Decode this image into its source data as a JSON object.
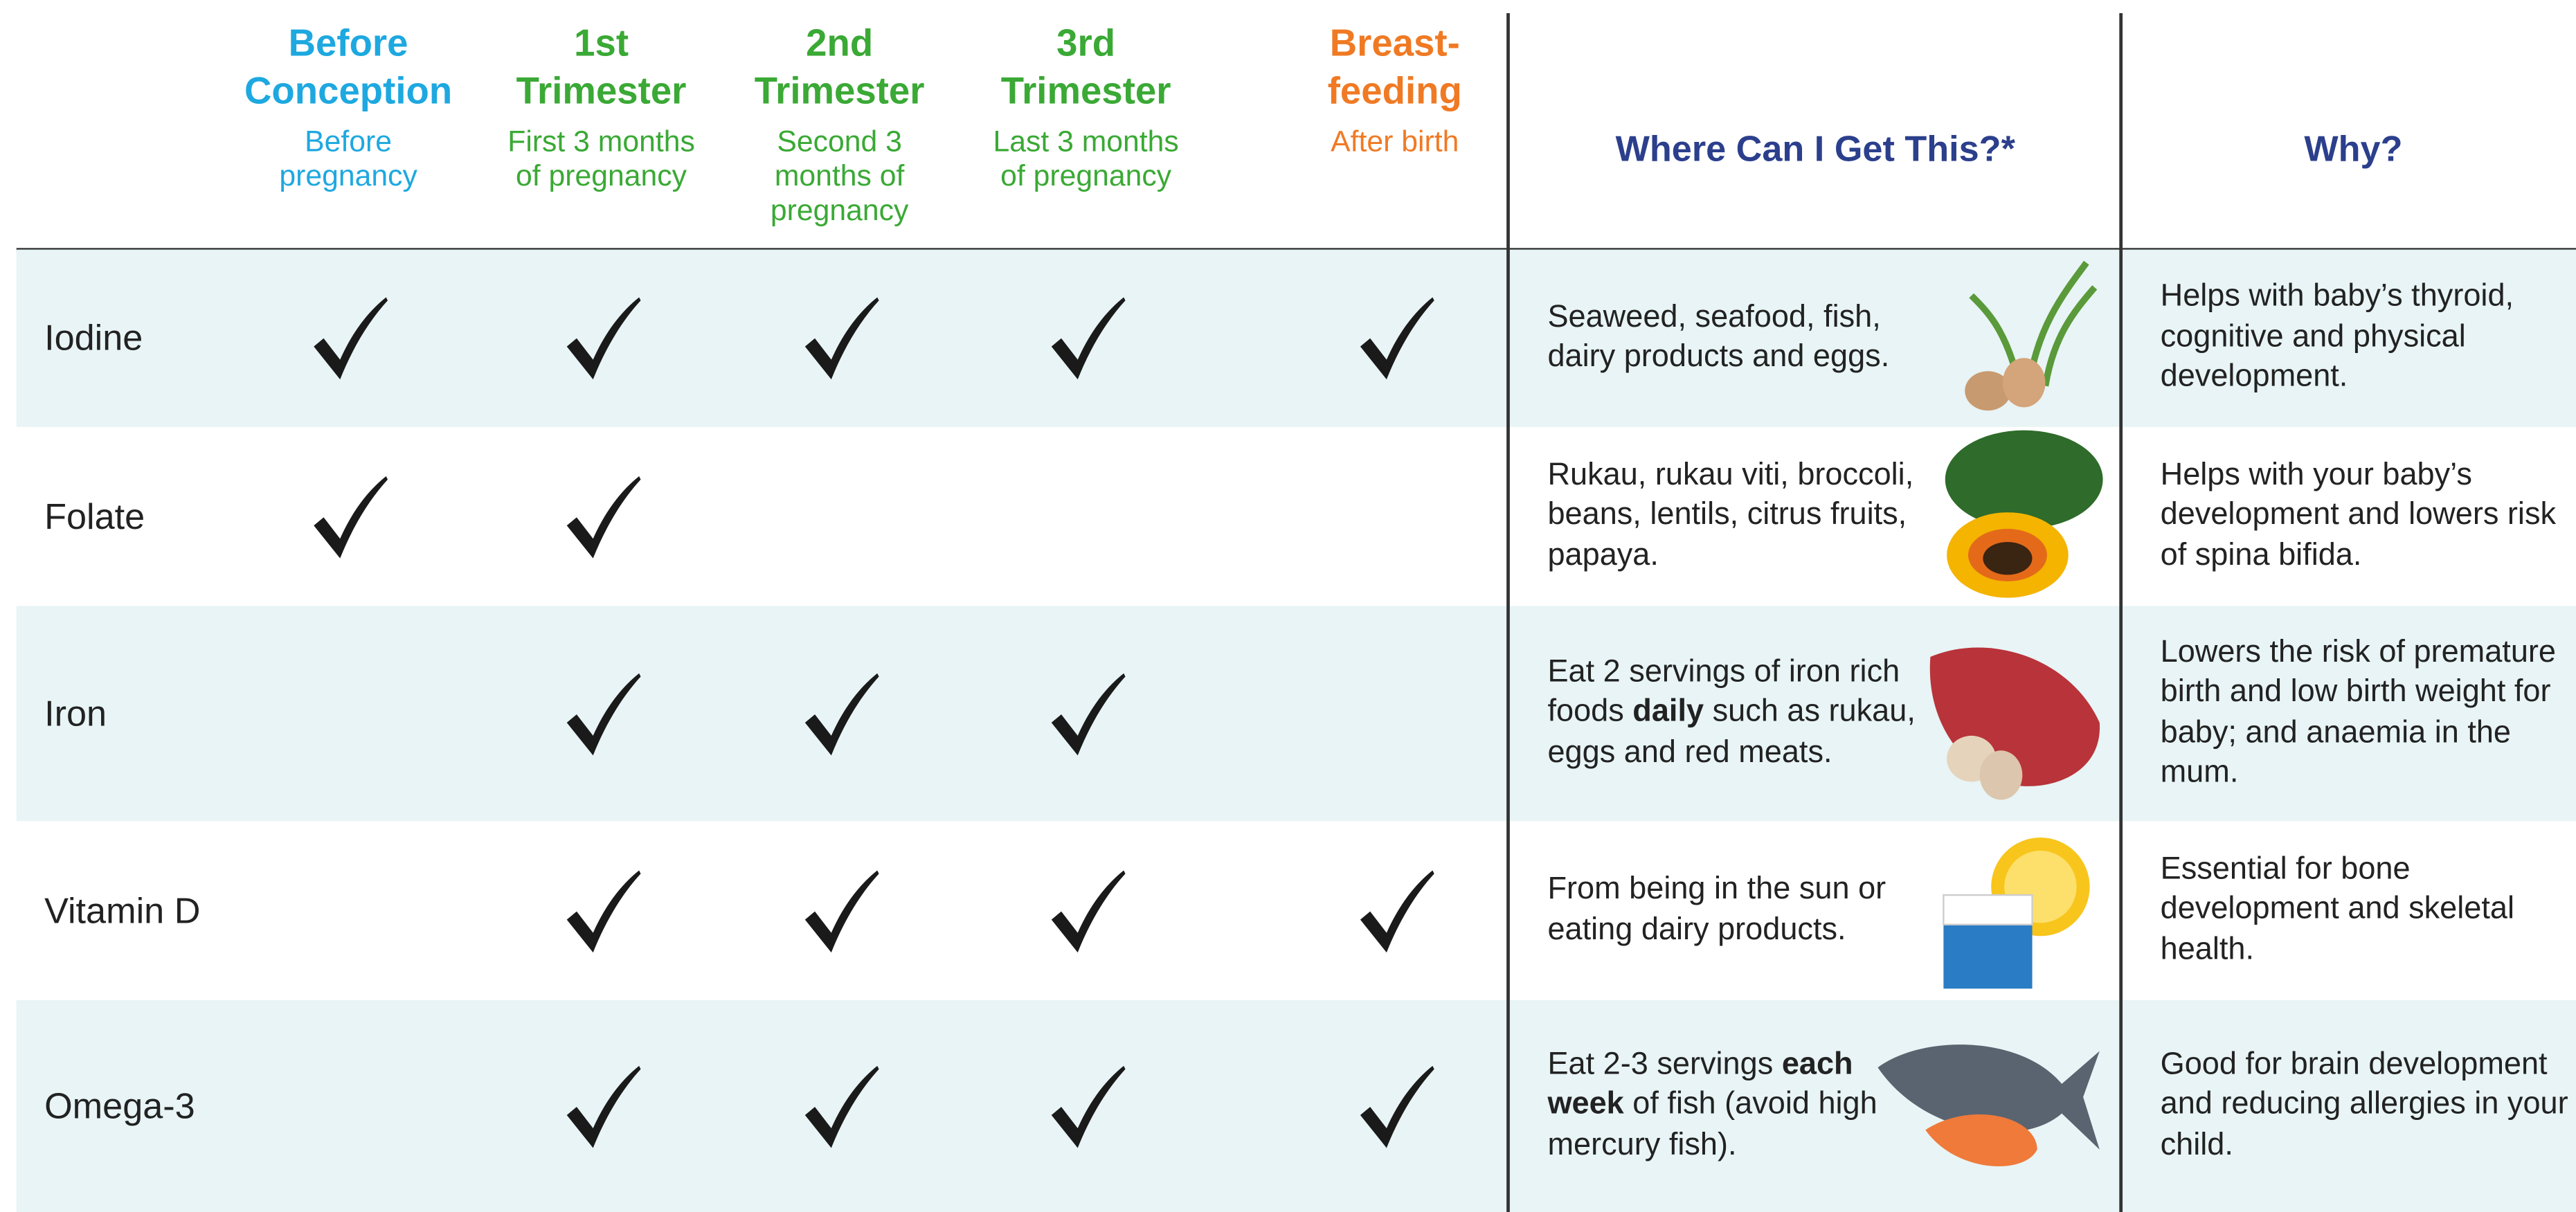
{
  "header": {
    "columns": [
      {
        "title": "Before Conception",
        "subtitle": "Before pregnancy",
        "color": "#1ea8e0"
      },
      {
        "title": "1st Trimester",
        "subtitle": "First 3 months of pregnancy",
        "color": "#3aa935"
      },
      {
        "title": "2nd Trimester",
        "subtitle": "Second 3 months of pregnancy",
        "color": "#3aa935"
      },
      {
        "title": "3rd Trimester",
        "subtitle": "Last 3 months of pregnancy",
        "color": "#3aa935"
      },
      {
        "title": "Breast-feeding",
        "subtitle": "After birth",
        "color": "#f07a24"
      }
    ],
    "source_heading": "Where Can I Get This?*",
    "why_heading": "Why?"
  },
  "rows": [
    {
      "name": "Iodine",
      "checks": [
        true,
        true,
        true,
        true,
        true
      ],
      "source": [
        {
          "text": "Seaweed, seafood, fish, dairy products and eggs.",
          "bold": false
        }
      ],
      "why": "Helps with baby’s thyroid, cognitive and physical development.",
      "shaded": true
    },
    {
      "name": "Folate",
      "checks": [
        true,
        true,
        false,
        false,
        false
      ],
      "source": [
        {
          "text": "Rukau, rukau viti, broccoli, beans, lentils, citrus fruits, papaya.",
          "bold": false
        }
      ],
      "why": "Helps with your baby’s development and lowers risk of spina bifida.",
      "shaded": false
    },
    {
      "name": "Iron",
      "checks": [
        false,
        true,
        true,
        true,
        false
      ],
      "source": [
        {
          "text": "Eat 2 servings of iron rich foods ",
          "bold": false
        },
        {
          "text": "daily",
          "bold": true
        },
        {
          "text": " such as rukau, eggs and red meats.",
          "bold": false
        }
      ],
      "why": "Lowers the risk of premature birth and low birth weight for baby; and anaemia in the mum.",
      "shaded": true
    },
    {
      "name": "Vitamin D",
      "checks": [
        false,
        true,
        true,
        true,
        true
      ],
      "source": [
        {
          "text": "From being in the sun or eating dairy products.",
          "bold": false
        }
      ],
      "why": "Essential for bone development and skeletal health.",
      "shaded": false
    },
    {
      "name": "Omega-3",
      "checks": [
        false,
        true,
        true,
        true,
        true
      ],
      "source": [
        {
          "text": "Eat 2-3 servings ",
          "bold": false
        },
        {
          "text": "each week",
          "bold": true
        },
        {
          "text": " of fish (avoid high mercury fish).",
          "bold": false
        }
      ],
      "why": "Good for brain development and reducing allergies in your child.",
      "shaded": true
    }
  ]
}
